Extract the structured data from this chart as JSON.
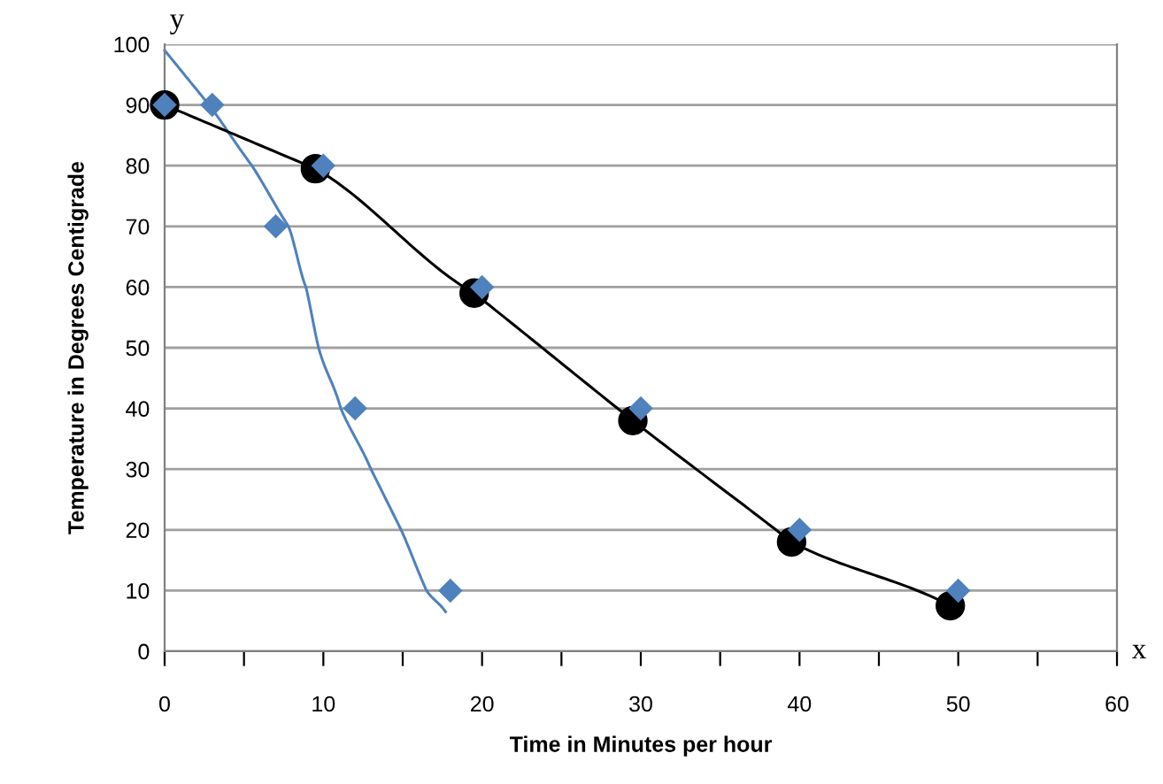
{
  "chart_data": {
    "type": "scatter",
    "xlabel": "Time in Minutes per hour",
    "ylabel": "Temperature in Degrees Centigrade",
    "annotations": [
      "y",
      "x"
    ],
    "series": [
      {
        "color": "#4f81bd",
        "marker": "diamond",
        "x": [
          0,
          3,
          7,
          10,
          12,
          18,
          20,
          30,
          40,
          50
        ],
        "values": [
          90,
          90,
          70,
          80,
          40,
          10,
          60,
          40,
          20,
          10
        ]
      },
      {
        "type": "line",
        "color": "#4f81bd",
        "marker": "none",
        "x": [
          0,
          2.8,
          5.5,
          7.8,
          8.9,
          9.7,
          11.1,
          13,
          14.9,
          16.5,
          17.7
        ],
        "values": [
          99,
          90,
          80,
          70,
          60,
          50,
          40,
          30,
          20,
          10,
          6.5
        ]
      },
      {
        "type": "line",
        "color": "#000000",
        "marker": "circle",
        "x": [
          0,
          9.5,
          19.5,
          29.5,
          39.5,
          49.5
        ],
        "values": [
          90,
          79.5,
          59,
          38,
          18,
          7.5
        ]
      }
    ],
    "xlim": [
      0,
      60
    ],
    "ylim": [
      0,
      100
    ],
    "xticks": [
      0,
      10,
      20,
      30,
      40,
      50,
      60,
      {
        "value": 5,
        "label": null
      },
      {
        "value": 15,
        "label": null
      },
      {
        "value": 25,
        "label": null
      },
      {
        "value": 35,
        "label": null
      },
      {
        "value": 45,
        "label": null
      },
      {
        "value": 55,
        "label": null
      }
    ],
    "yticks": [
      0,
      10,
      20,
      30,
      40,
      50,
      60,
      70,
      80,
      90,
      100
    ],
    "grid": "y",
    "line_style": "solid"
  }
}
